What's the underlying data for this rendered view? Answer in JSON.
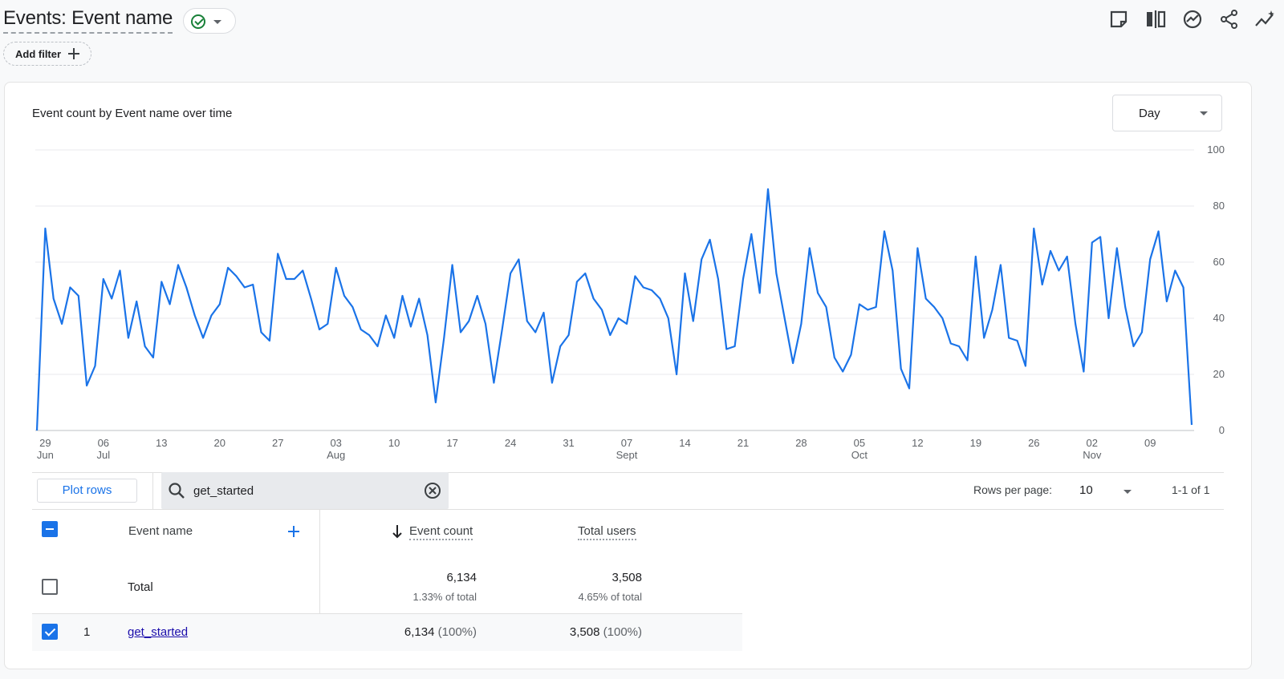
{
  "header": {
    "title": "Events: Event name",
    "add_filter_label": "Add filter",
    "toolbar_icons": [
      "customize-report-icon",
      "compare-icon",
      "insights-icon",
      "share-icon",
      "trend-icon"
    ]
  },
  "chart": {
    "title": "Event count by Event name over time",
    "granularity_label": "Day"
  },
  "chart_data": {
    "type": "line",
    "title": "Event count by Event name over time",
    "xlabel": "",
    "ylabel": "",
    "ylim": [
      0,
      100
    ],
    "y_ticks": [
      "0",
      "20",
      "40",
      "60",
      "80",
      "100"
    ],
    "x_ticks": [
      {
        "day": "29",
        "month": "Jun"
      },
      {
        "day": "06",
        "month": "Jul"
      },
      {
        "day": "13",
        "month": ""
      },
      {
        "day": "20",
        "month": ""
      },
      {
        "day": "27",
        "month": ""
      },
      {
        "day": "03",
        "month": "Aug"
      },
      {
        "day": "10",
        "month": ""
      },
      {
        "day": "17",
        "month": ""
      },
      {
        "day": "24",
        "month": ""
      },
      {
        "day": "31",
        "month": ""
      },
      {
        "day": "07",
        "month": "Sept"
      },
      {
        "day": "14",
        "month": ""
      },
      {
        "day": "21",
        "month": ""
      },
      {
        "day": "28",
        "month": ""
      },
      {
        "day": "05",
        "month": "Oct"
      },
      {
        "day": "12",
        "month": ""
      },
      {
        "day": "19",
        "month": ""
      },
      {
        "day": "26",
        "month": ""
      },
      {
        "day": "02",
        "month": "Nov"
      },
      {
        "day": "09",
        "month": ""
      }
    ],
    "grid": true,
    "series": [
      {
        "name": "get_started",
        "color": "#1a73e8",
        "values": [
          0,
          72,
          47,
          38,
          51,
          48,
          16,
          23,
          54,
          47,
          57,
          33,
          46,
          30,
          26,
          53,
          45,
          59,
          51,
          41,
          33,
          41,
          45,
          58,
          55,
          51,
          52,
          35,
          32,
          63,
          54,
          54,
          57,
          47,
          36,
          38,
          58,
          48,
          44,
          36,
          34,
          30,
          41,
          33,
          48,
          37,
          47,
          34,
          10,
          33,
          59,
          35,
          39,
          48,
          38,
          17,
          36,
          56,
          61,
          39,
          35,
          42,
          17,
          30,
          34,
          53,
          56,
          47,
          43,
          34,
          40,
          38,
          55,
          51,
          50,
          47,
          40,
          20,
          56,
          39,
          61,
          68,
          54,
          29,
          30,
          54,
          70,
          49,
          86,
          56,
          40,
          24,
          38,
          65,
          49,
          44,
          26,
          21,
          27,
          45,
          43,
          44,
          71,
          57,
          22,
          15,
          65,
          47,
          44,
          40,
          31,
          30,
          25,
          62,
          33,
          43,
          59,
          33,
          32,
          23,
          72,
          52,
          64,
          57,
          62,
          38,
          21,
          67,
          69,
          40,
          65,
          44,
          30,
          35,
          61,
          71,
          46,
          57,
          51,
          2
        ]
      }
    ]
  },
  "table_controls": {
    "plot_rows_label": "Plot rows",
    "search_value": "get_started",
    "rows_per_page_label": "Rows per page:",
    "rows_per_page_value": "10",
    "pagination": "1-1 of 1"
  },
  "table": {
    "headers": {
      "event_name": "Event name",
      "event_count": "Event count",
      "total_users": "Total users"
    },
    "total": {
      "label": "Total",
      "event_count": "6,134",
      "event_count_pct": "1.33% of total",
      "total_users": "3,508",
      "total_users_pct": "4.65% of total"
    },
    "rows": [
      {
        "index": "1",
        "event_name": "get_started",
        "event_count": "6,134",
        "event_count_pct": "(100%)",
        "total_users": "3,508",
        "total_users_pct": "(100%)"
      }
    ]
  }
}
